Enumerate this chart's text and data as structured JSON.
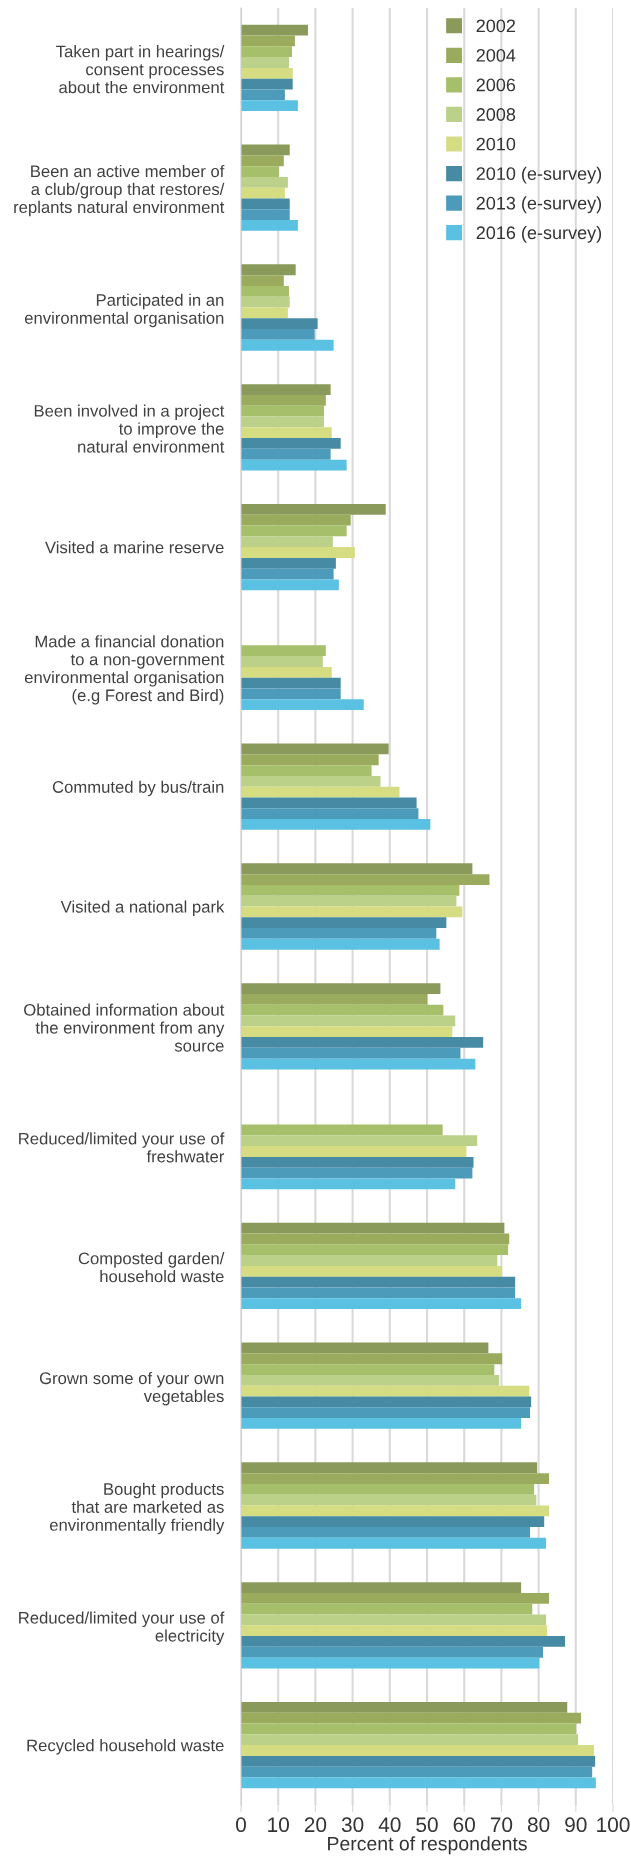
{
  "chart_data": {
    "type": "bar",
    "orientation": "horizontal",
    "categories": [
      "Taken part in hearings/\nconsent processes\nabout the environment",
      "Been an active member of\na club/group that restores/\nreplants natural environment",
      "Participated in an\nenvironmental organisation",
      "Been involved in a project\nto improve the\nnatural environment",
      "Visited a marine reserve",
      "Made a financial donation\nto a non-government\nenvironmental organisation\n(e.g Forest and Bird)",
      "Commuted by bus/train",
      "Visited a national park",
      "Obtained information about\nthe environment from any\nsource",
      "Reduced/limited your use of\nfreshwater",
      "Composted garden/\nhousehold waste",
      "Grown some of your own\nvegetables",
      "Bought products\nthat are marketed as\nenvironmentally friendly",
      "Reduced/limited your use of\nelectricity",
      "Recycled household waste"
    ],
    "series": [
      {
        "name": "2002",
        "color": "#8a9a5b",
        "values": [
          18.0,
          13.1,
          14.7,
          24.1,
          38.9,
          null,
          39.7,
          62.2,
          53.6,
          null,
          70.8,
          66.5,
          79.6,
          75.3,
          87.7
        ]
      },
      {
        "name": "2004",
        "color": "#9aab5e",
        "values": [
          14.5,
          11.5,
          11.5,
          22.8,
          29.5,
          null,
          37.0,
          66.8,
          50.1,
          null,
          72.1,
          70.2,
          82.8,
          82.8,
          91.4
        ]
      },
      {
        "name": "2006",
        "color": "#a5bf6a",
        "values": [
          13.7,
          10.2,
          12.9,
          22.3,
          28.4,
          22.8,
          35.1,
          58.7,
          54.4,
          54.2,
          71.8,
          68.1,
          78.8,
          78.3,
          90.1
        ]
      },
      {
        "name": "2008",
        "color": "#bbd18a",
        "values": [
          12.9,
          12.6,
          13.1,
          22.3,
          24.7,
          22.0,
          37.5,
          57.9,
          57.6,
          63.5,
          68.9,
          69.4,
          79.4,
          82.0,
          90.6
        ]
      },
      {
        "name": "2010",
        "color": "#d5dc82",
        "values": [
          13.9,
          11.8,
          12.6,
          24.4,
          30.6,
          24.4,
          42.6,
          59.5,
          56.8,
          60.6,
          70.2,
          77.5,
          82.8,
          82.3,
          94.9
        ]
      },
      {
        "name": "2010 (e-survey)",
        "color": "#468aa3",
        "values": [
          13.9,
          13.1,
          20.6,
          26.8,
          25.5,
          26.8,
          47.2,
          55.2,
          65.1,
          62.5,
          73.7,
          78.0,
          81.5,
          87.1,
          95.2
        ]
      },
      {
        "name": "2013 (e-survey)",
        "color": "#4d9bbb",
        "values": [
          11.8,
          13.1,
          19.8,
          24.1,
          24.9,
          26.8,
          47.7,
          52.5,
          59.0,
          62.2,
          73.7,
          77.7,
          77.7,
          81.2,
          94.4
        ]
      },
      {
        "name": "2016 (e-survey)",
        "color": "#5bc1e3",
        "values": [
          15.3,
          15.3,
          24.9,
          28.4,
          26.3,
          33.0,
          50.9,
          53.4,
          63.0,
          57.6,
          75.3,
          75.3,
          82.0,
          80.2,
          95.4
        ]
      }
    ],
    "xlabel": "Percent of respondents",
    "xlim": [
      0,
      100
    ],
    "xticks": [
      0,
      10,
      20,
      30,
      40,
      50,
      60,
      70,
      80,
      90,
      100
    ],
    "grid": "x",
    "legend": "top right"
  }
}
